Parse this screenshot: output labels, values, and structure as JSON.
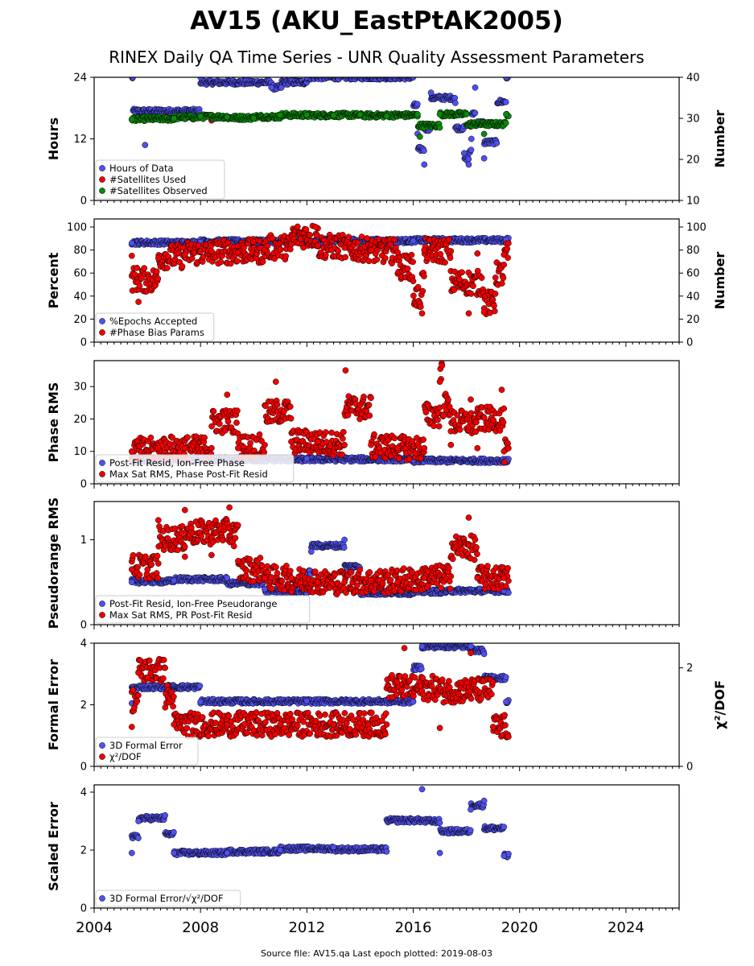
{
  "title": "AV15 (AKU_EastPtAK2005)",
  "subtitle": "RINEX Daily QA Time Series - UNR Quality Assessment Parameters",
  "footer": "Source file: AV15.qa Last epoch plotted: 2019-08-03",
  "colors": {
    "blue": "#5050ee",
    "red": "#ee0000",
    "green": "#0a8a0a",
    "edge": "#000000"
  },
  "chart_data": {
    "type": "scatter",
    "x_axis": {
      "type": "date",
      "range": [
        "2004-01-01",
        "2026-01-01"
      ],
      "ticks": [
        "2004",
        "2008",
        "2012",
        "2016",
        "2020",
        "2024"
      ]
    },
    "panels": [
      {
        "ylabel": "Hours",
        "y2label": "Number",
        "ylim": [
          0,
          24
        ],
        "yticks": [
          "0",
          "12",
          "24"
        ],
        "y2lim": [
          10,
          40
        ],
        "y2ticks": [
          "10",
          "20",
          "30",
          "40"
        ],
        "legend": [
          "Hours of Data",
          "#Satellites Used",
          "#Satellites Observed"
        ],
        "series": [
          {
            "name": "Hours of Data",
            "axis": "left",
            "color": "blue",
            "points": [
              [
                "2005-06-15",
                24
              ],
              [
                "2008-01-01",
                24
              ],
              [
                "2012-01-01",
                24
              ],
              [
                "2016-01-01",
                24
              ],
              [
                "2019-07-01",
                24
              ],
              [
                "2005-12-01",
                10.8
              ],
              [
                "2010-09-01",
                22
              ],
              [
                "2011-01-15",
                22
              ],
              [
                "2016-03-01",
                13
              ],
              [
                "2016-06-01",
                7
              ],
              [
                "2017-08-01",
                19
              ],
              [
                "2018-02-01",
                7
              ],
              [
                "2018-03-10",
                12
              ],
              [
                "2018-09-01",
                8.2
              ],
              [
                "2019-03-01",
                14.5
              ],
              [
                "2016-09-01",
                21
              ],
              [
                "2017-12-01",
                9.2
              ],
              [
                "2018-05-01",
                22
              ]
            ]
          },
          {
            "name": "#Satellites Used",
            "axis": "right",
            "color": "red",
            "points": [
              [
                "2008-06-01",
                29.5
              ],
              [
                "2016-03-01",
                30.5
              ],
              [
                "2018-03-01",
                28
              ]
            ]
          },
          {
            "name": "#Satellites Observed",
            "axis": "right",
            "color": "green",
            "points": [
              [
                "2005-06-01",
                29.8
              ],
              [
                "2007-01-01",
                30
              ],
              [
                "2008-01-01",
                30.5
              ],
              [
                "2009-01-01",
                30.3
              ],
              [
                "2010-01-01",
                30
              ],
              [
                "2011-01-01",
                30.8
              ],
              [
                "2012-01-01",
                30.8
              ],
              [
                "2013-01-01",
                30.7
              ],
              [
                "2014-01-01",
                30.9
              ],
              [
                "2015-01-01",
                30.5
              ],
              [
                "2016-03-01",
                31
              ],
              [
                "2017-01-01",
                31
              ],
              [
                "2018-01-01",
                31
              ],
              [
                "2019-07-01",
                31
              ],
              [
                "2016-04-01",
                25.5
              ],
              [
                "2018-09-01",
                26.2
              ]
            ]
          }
        ]
      },
      {
        "ylabel": "Percent",
        "y2label": "Number",
        "ylim": [
          0,
          107
        ],
        "yticks": [
          "0",
          "20",
          "40",
          "60",
          "80",
          "100"
        ],
        "y2lim": [
          0,
          107
        ],
        "y2ticks": [
          "0",
          "20",
          "40",
          "60",
          "80",
          "100"
        ],
        "legend": [
          "%Epochs Accepted",
          "#Phase Bias Params"
        ],
        "series": [
          {
            "name": "%Epochs Accepted",
            "axis": "left",
            "color": "blue",
            "points": [
              [
                "2005-06-01",
                86
              ],
              [
                "2008-01-01",
                87
              ],
              [
                "2012-01-01",
                88
              ],
              [
                "2016-01-01",
                88
              ],
              [
                "2019-07-01",
                89
              ]
            ]
          },
          {
            "name": "#Phase Bias Params",
            "axis": "right",
            "color": "red",
            "points": [
              [
                "2005-06-01",
                75
              ],
              [
                "2006-06-01",
                73
              ],
              [
                "2007-06-01",
                76
              ],
              [
                "2008-06-01",
                79
              ],
              [
                "2009-06-01",
                78
              ],
              [
                "2010-06-01",
                80
              ],
              [
                "2011-06-01",
                85
              ],
              [
                "2012-06-01",
                84
              ],
              [
                "2013-06-01",
                82
              ],
              [
                "2014-06-01",
                80
              ],
              [
                "2015-06-01",
                78
              ],
              [
                "2016-06-01",
                80
              ],
              [
                "2017-06-01",
                79
              ],
              [
                "2018-06-01",
                77
              ],
              [
                "2019-06-01",
                76
              ],
              [
                "2005-09-01",
                35
              ],
              [
                "2016-05-01",
                25
              ],
              [
                "2018-02-01",
                25
              ],
              [
                "2018-09-01",
                26
              ],
              [
                "2019-02-01",
                42
              ],
              [
                "2012-05-01",
                100
              ],
              [
                "2016-01-01",
                53
              ]
            ]
          }
        ]
      },
      {
        "ylabel": "Phase RMS",
        "ylim": [
          0,
          38
        ],
        "yticks": [
          "0",
          "10",
          "20",
          "30"
        ],
        "legend": [
          "Post-Fit Resid, Ion-Free Phase",
          "Max Sat RMS, Phase Post-Fit Resid"
        ],
        "series": [
          {
            "name": "Post-Fit Resid, Ion-Free Phase",
            "axis": "left",
            "color": "blue",
            "points": [
              [
                "2005-06-01",
                7.5
              ],
              [
                "2008-01-01",
                7.2
              ],
              [
                "2012-01-01",
                7.8
              ],
              [
                "2016-01-01",
                7.3
              ],
              [
                "2019-07-01",
                7
              ]
            ]
          },
          {
            "name": "Max Sat RMS, Phase Post-Fit Resid",
            "axis": "left",
            "color": "red",
            "points": [
              [
                "2005-06-01",
                10
              ],
              [
                "2006-06-01",
                11
              ],
              [
                "2007-06-01",
                11
              ],
              [
                "2008-06-01",
                11
              ],
              [
                "2009-06-01",
                11
              ],
              [
                "2010-06-01",
                12
              ],
              [
                "2011-06-01",
                13
              ],
              [
                "2012-06-01",
                13
              ],
              [
                "2013-06-01",
                12
              ],
              [
                "2014-06-01",
                12
              ],
              [
                "2015-06-01",
                11
              ],
              [
                "2016-06-01",
                11
              ],
              [
                "2017-06-01",
                12
              ],
              [
                "2018-06-01",
                11
              ],
              [
                "2019-06-01",
                10
              ],
              [
                "2013-06-15",
                35
              ],
              [
                "2017-02-01",
                36.5
              ],
              [
                "2017-01-01",
                31.5
              ],
              [
                "2010-11-01",
                31.5
              ],
              [
                "2019-05-01",
                29
              ],
              [
                "2018-03-01",
                26
              ],
              [
                "2009-01-01",
                27.5
              ]
            ]
          }
        ]
      },
      {
        "ylabel": "Pseudorange RMS",
        "ylim": [
          0,
          1.45
        ],
        "yticks": [
          "0",
          "1"
        ],
        "legend": [
          "Post-Fit Resid, Ion-Free Pseudorange",
          "Max Sat RMS, PR Post-Fit Resid"
        ],
        "series": [
          {
            "name": "Post-Fit Resid, Ion-Free Pseudorange",
            "axis": "left",
            "color": "blue",
            "points": [
              [
                "2005-06-01",
                0.5
              ],
              [
                "2007-01-01",
                0.52
              ],
              [
                "2009-01-01",
                0.55
              ],
              [
                "2010-06-01",
                0.42
              ],
              [
                "2012-01-01",
                0.37
              ],
              [
                "2014-01-01",
                0.37
              ],
              [
                "2016-01-01",
                0.38
              ],
              [
                "2017-06-01",
                0.4
              ],
              [
                "2019-06-01",
                0.4
              ],
              [
                "2013-06-01",
                1.0
              ],
              [
                "2012-03-01",
                0.86
              ]
            ]
          },
          {
            "name": "Max Sat RMS, PR Post-Fit Resid",
            "axis": "left",
            "color": "red",
            "points": [
              [
                "2005-06-01",
                0.65
              ],
              [
                "2006-06-01",
                0.72
              ],
              [
                "2007-06-01",
                0.8
              ],
              [
                "2008-06-01",
                0.82
              ],
              [
                "2009-06-01",
                0.75
              ],
              [
                "2010-06-01",
                0.55
              ],
              [
                "2011-06-01",
                0.55
              ],
              [
                "2012-06-01",
                0.5
              ],
              [
                "2013-06-01",
                0.5
              ],
              [
                "2014-06-01",
                0.52
              ],
              [
                "2015-06-01",
                0.5
              ],
              [
                "2016-06-01",
                0.55
              ],
              [
                "2017-06-01",
                0.57
              ],
              [
                "2018-06-01",
                0.55
              ],
              [
                "2019-06-01",
                0.55
              ],
              [
                "2007-06-01",
                1.35
              ],
              [
                "2009-02-01",
                1.38
              ],
              [
                "2018-02-01",
                1.26
              ],
              [
                "2006-06-01",
                1.23
              ]
            ]
          }
        ]
      },
      {
        "ylabel": "Formal Error",
        "y2label": "χ²/DOF",
        "ylim": [
          0,
          4
        ],
        "yticks": [
          "0",
          "2",
          "4"
        ],
        "y2lim": [
          0,
          2.5
        ],
        "y2ticks": [
          "0",
          "2"
        ],
        "legend": [
          "3D Formal Error",
          "χ²/DOF"
        ],
        "series": [
          {
            "name": "3D Formal Error",
            "axis": "left",
            "color": "blue",
            "points": [
              [
                "2005-06-01",
                2.05
              ],
              [
                "2008-01-01",
                2.1
              ],
              [
                "2012-01-01",
                2.12
              ],
              [
                "2016-01-01",
                2.1
              ],
              [
                "2019-07-01",
                2.1
              ],
              [
                "2005-09-01",
                3.05
              ],
              [
                "2016-05-01",
                3.9
              ],
              [
                "2018-03-01",
                3.9
              ],
              [
                "2018-09-01",
                3.65
              ],
              [
                "2016-01-01",
                2.5
              ]
            ]
          },
          {
            "name": "χ²/DOF",
            "axis": "right",
            "color": "red",
            "points": [
              [
                "2005-06-01",
                0.8
              ],
              [
                "2007-01-01",
                0.85
              ],
              [
                "2009-01-01",
                0.85
              ],
              [
                "2011-01-01",
                0.85
              ],
              [
                "2013-01-01",
                0.85
              ],
              [
                "2015-01-01",
                0.85
              ],
              [
                "2017-01-01",
                0.78
              ],
              [
                "2019-01-01",
                0.8
              ],
              [
                "2006-09-01",
                2.0
              ],
              [
                "2015-09-01",
                2.4
              ],
              [
                "2018-03-01",
                2.3
              ],
              [
                "2005-09-01",
                1.9
              ]
            ]
          }
        ]
      },
      {
        "ylabel": "Scaled Error",
        "ylim": [
          0,
          4.25
        ],
        "yticks": [
          "0",
          "2",
          "4"
        ],
        "legend_html": "3D Formal Error/√χ²/DOF",
        "legend": [
          "3D Formal Error/√χ²/DOF"
        ],
        "series": [
          {
            "name": "3D Formal Error/√χ²/DOF",
            "axis": "left",
            "color": "blue",
            "points": [
              [
                "2005-06-01",
                1.9
              ],
              [
                "2007-01-01",
                1.9
              ],
              [
                "2009-01-01",
                1.9
              ],
              [
                "2011-01-01",
                2.0
              ],
              [
                "2013-01-01",
                2.1
              ],
              [
                "2015-01-01",
                1.95
              ],
              [
                "2017-01-01",
                1.9
              ],
              [
                "2019-06-01",
                1.8
              ],
              [
                "2016-05-01",
                4.1
              ],
              [
                "2018-03-01",
                3.4
              ],
              [
                "2018-09-01",
                3.7
              ],
              [
                "2006-09-01",
                3.2
              ],
              [
                "2005-09-01",
                3.0
              ]
            ]
          }
        ]
      }
    ]
  }
}
